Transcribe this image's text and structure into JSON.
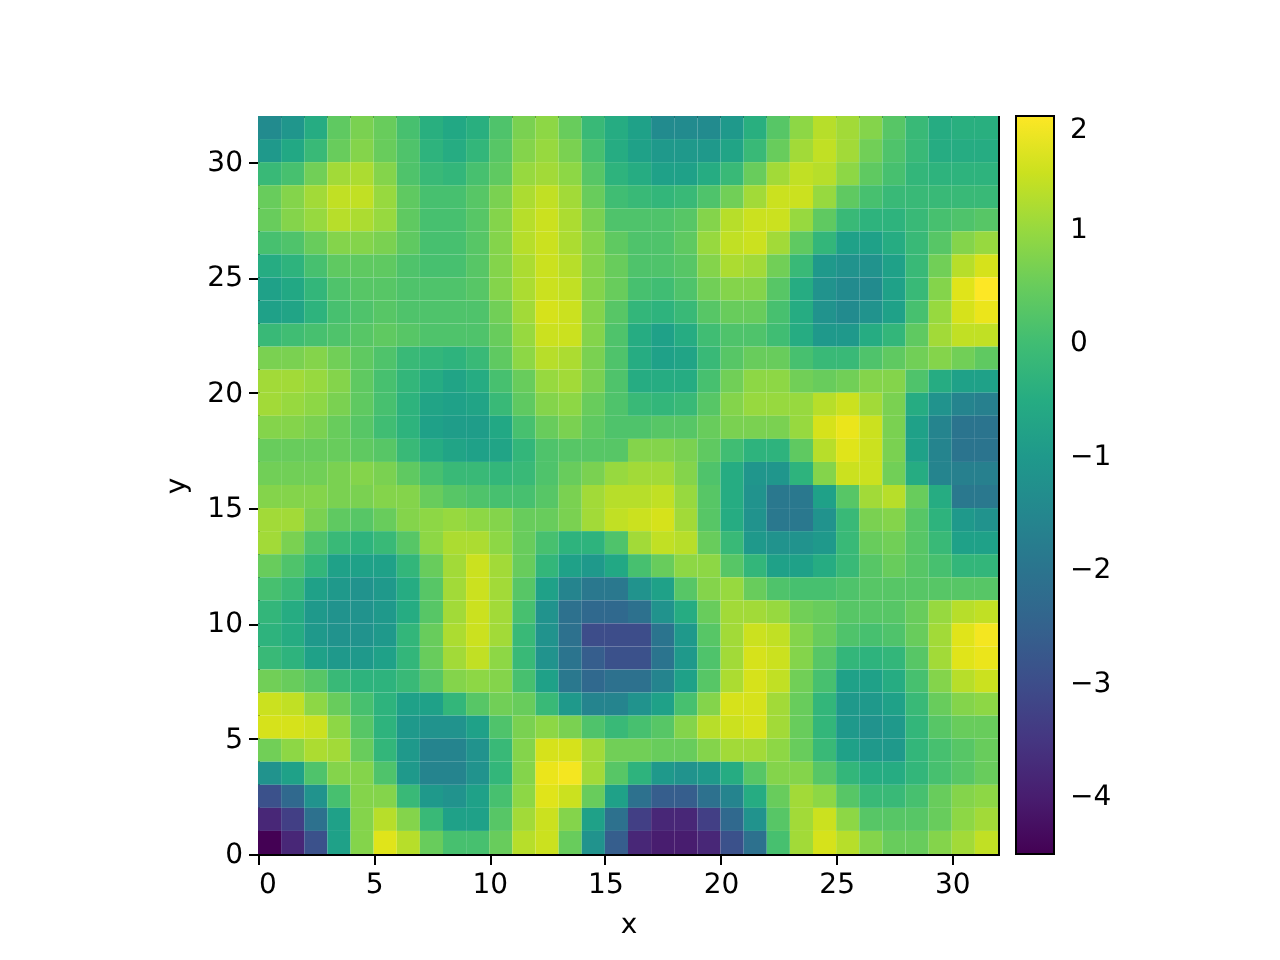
{
  "chart_data": {
    "type": "heatmap",
    "xlabel": "x",
    "ylabel": "y",
    "xlim": [
      0,
      32
    ],
    "ylim": [
      0,
      32
    ],
    "xticks": [
      0,
      5,
      10,
      15,
      20,
      25,
      30
    ],
    "yticks": [
      0,
      5,
      10,
      15,
      20,
      25,
      30
    ],
    "clim": [
      -4.5,
      2
    ],
    "cticks": [
      {
        "value": -4,
        "label": "−4"
      },
      {
        "value": -3,
        "label": "−3"
      },
      {
        "value": -2,
        "label": "−2"
      },
      {
        "value": -1,
        "label": "−1"
      },
      0,
      1,
      2
    ],
    "cells": [
      [
        -1.4,
        -1.1,
        -0.5,
        0.4,
        0.7,
        0.5,
        0.1,
        -0.4,
        -0.6,
        -0.4,
        0.2,
        0.7,
        0.9,
        0.5,
        -0.1,
        -0.5,
        -0.8,
        -1.4,
        -1.4,
        -1.4,
        -1.0,
        -0.4,
        0.3,
        0.9,
        1.3,
        1.1,
        0.8,
        0.3,
        -0.1,
        -0.5,
        -0.4,
        -0.4
      ],
      [
        -1.0,
        -0.6,
        -0.1,
        0.5,
        0.8,
        0.5,
        0.2,
        -0.3,
        -0.5,
        -0.2,
        0.3,
        0.8,
        1.0,
        0.7,
        0.1,
        -0.5,
        -0.8,
        -1.0,
        -1.0,
        -1.0,
        -0.7,
        -0.1,
        0.5,
        1.1,
        1.4,
        1.1,
        0.6,
        0.2,
        -0.1,
        -0.5,
        -0.5,
        -0.5
      ],
      [
        -0.1,
        0.1,
        0.6,
        1.1,
        1.2,
        0.8,
        0.2,
        -0.1,
        -0.2,
        0.1,
        0.4,
        1.0,
        1.1,
        0.9,
        0.3,
        -0.3,
        -0.5,
        -0.8,
        -0.8,
        -0.5,
        -0.1,
        0.5,
        1.1,
        1.4,
        1.3,
        0.9,
        0.4,
        0.1,
        -0.2,
        -0.3,
        -0.3,
        -0.3
      ],
      [
        0.5,
        0.8,
        1.1,
        1.4,
        1.4,
        1.0,
        0.4,
        0.1,
        0.1,
        0.3,
        0.7,
        1.2,
        1.4,
        1.1,
        0.5,
        0.0,
        -0.1,
        -0.2,
        -0.1,
        0.2,
        0.6,
        1.1,
        1.5,
        1.5,
        1.0,
        0.4,
        0.1,
        -0.1,
        -0.1,
        -0.1,
        -0.1,
        -0.1
      ],
      [
        0.5,
        0.8,
        1.0,
        1.3,
        1.2,
        1.0,
        0.4,
        0.1,
        0.1,
        0.3,
        0.8,
        1.3,
        1.5,
        1.2,
        0.7,
        0.2,
        0.2,
        0.2,
        0.3,
        0.8,
        1.3,
        1.5,
        1.5,
        1.0,
        0.4,
        -0.1,
        -0.3,
        -0.3,
        -0.1,
        0.1,
        0.2,
        0.3
      ],
      [
        0.1,
        0.2,
        0.5,
        0.8,
        0.8,
        0.7,
        0.4,
        0.1,
        0.1,
        0.3,
        0.8,
        1.3,
        1.5,
        1.2,
        0.8,
        0.4,
        0.2,
        0.2,
        0.4,
        1.0,
        1.4,
        1.5,
        1.1,
        0.4,
        -0.2,
        -0.8,
        -0.8,
        -0.5,
        -0.1,
        0.3,
        0.8,
        1.0
      ],
      [
        -0.5,
        -0.3,
        0.1,
        0.4,
        0.4,
        0.4,
        0.2,
        0.1,
        0.1,
        0.3,
        0.8,
        1.2,
        1.5,
        1.3,
        0.8,
        0.5,
        0.2,
        0.2,
        0.3,
        0.8,
        1.2,
        1.1,
        0.6,
        -0.1,
        -1.0,
        -1.2,
        -1.2,
        -0.8,
        -0.1,
        0.6,
        1.3,
        1.6
      ],
      [
        -0.8,
        -0.6,
        -0.2,
        0.2,
        0.3,
        0.3,
        0.2,
        0.2,
        0.2,
        0.3,
        0.8,
        1.2,
        1.5,
        1.4,
        0.8,
        0.5,
        0.1,
        0.0,
        0.2,
        0.6,
        0.8,
        0.8,
        0.3,
        -0.5,
        -1.2,
        -1.4,
        -1.4,
        -0.8,
        -0.1,
        0.8,
        1.7,
        2.0
      ],
      [
        -0.8,
        -0.7,
        -0.3,
        0.1,
        0.2,
        0.3,
        0.2,
        0.2,
        0.2,
        0.2,
        0.6,
        1.1,
        1.6,
        1.5,
        0.8,
        0.3,
        -0.2,
        -0.3,
        -0.1,
        0.3,
        0.5,
        0.5,
        0.1,
        -0.5,
        -1.2,
        -1.4,
        -1.2,
        -0.8,
        0.1,
        1.0,
        1.6,
        1.8
      ],
      [
        -0.1,
        0.0,
        0.1,
        0.2,
        0.3,
        0.4,
        0.3,
        0.2,
        0.2,
        0.2,
        0.5,
        1.0,
        1.5,
        1.5,
        0.8,
        0.2,
        -0.5,
        -0.8,
        -0.5,
        0.0,
        0.2,
        0.2,
        0.0,
        -0.5,
        -1.0,
        -1.0,
        -0.5,
        -0.2,
        0.4,
        1.1,
        1.4,
        1.4
      ],
      [
        0.7,
        0.7,
        0.8,
        0.6,
        0.4,
        0.2,
        -0.1,
        -0.2,
        -0.3,
        -0.1,
        0.4,
        0.9,
        1.3,
        1.2,
        0.7,
        0.2,
        -0.5,
        -0.8,
        -0.7,
        -0.1,
        0.3,
        0.5,
        0.5,
        0.1,
        -0.1,
        -0.1,
        0.2,
        0.4,
        0.6,
        0.8,
        0.6,
        0.4
      ],
      [
        1.1,
        1.1,
        1.0,
        0.8,
        0.4,
        0.1,
        -0.2,
        -0.5,
        -0.7,
        -0.5,
        0.1,
        0.5,
        1.0,
        1.1,
        0.7,
        0.2,
        -0.5,
        -0.5,
        -0.5,
        0.1,
        0.6,
        0.9,
        0.9,
        0.6,
        0.5,
        0.6,
        0.8,
        0.8,
        0.2,
        -0.5,
        -0.8,
        -0.8
      ],
      [
        1.1,
        1.0,
        0.9,
        0.7,
        0.4,
        0.1,
        -0.3,
        -0.7,
        -0.8,
        -0.7,
        -0.1,
        0.4,
        0.8,
        0.9,
        0.5,
        0.2,
        -0.1,
        -0.2,
        -0.1,
        0.3,
        0.8,
        1.0,
        1.0,
        1.0,
        1.3,
        1.5,
        1.1,
        0.7,
        -0.5,
        -1.2,
        -1.6,
        -1.7
      ],
      [
        0.8,
        0.8,
        0.7,
        0.5,
        0.3,
        0.0,
        -0.3,
        -0.8,
        -0.9,
        -0.9,
        -0.6,
        0.1,
        0.5,
        0.7,
        0.4,
        0.2,
        0.2,
        0.3,
        0.3,
        0.5,
        0.7,
        0.7,
        0.7,
        1.0,
        1.6,
        1.8,
        1.5,
        0.7,
        -0.8,
        -1.6,
        -2.0,
        -2.0
      ],
      [
        0.5,
        0.5,
        0.5,
        0.5,
        0.4,
        0.3,
        -0.1,
        -0.5,
        -0.7,
        -0.8,
        -0.7,
        -0.2,
        0.2,
        0.3,
        0.3,
        0.3,
        0.8,
        0.8,
        0.7,
        0.4,
        0.0,
        -0.3,
        -0.3,
        0.4,
        1.3,
        1.7,
        1.5,
        0.7,
        -0.8,
        -1.6,
        -2.0,
        -2.0
      ],
      [
        0.6,
        0.6,
        0.6,
        0.7,
        0.8,
        0.7,
        0.4,
        0.1,
        -0.1,
        -0.1,
        -0.2,
        -0.1,
        0.2,
        0.5,
        0.7,
        1.0,
        1.1,
        1.1,
        0.8,
        0.2,
        -0.5,
        -1.1,
        -1.1,
        -0.3,
        0.8,
        1.5,
        1.5,
        0.6,
        -0.5,
        -1.6,
        -1.7,
        -1.7
      ],
      [
        0.8,
        0.8,
        0.8,
        0.7,
        0.7,
        0.8,
        0.8,
        0.5,
        0.3,
        0.2,
        0.1,
        0.1,
        0.3,
        0.7,
        1.1,
        1.3,
        1.3,
        1.4,
        1.0,
        0.3,
        -0.5,
        -1.2,
        -1.9,
        -1.9,
        -0.8,
        0.3,
        1.1,
        1.3,
        0.5,
        -0.5,
        -1.9,
        -1.9
      ],
      [
        1.1,
        1.1,
        0.7,
        0.4,
        0.3,
        0.5,
        0.8,
        0.9,
        1.0,
        0.9,
        0.8,
        0.5,
        0.5,
        0.7,
        1.1,
        1.4,
        1.5,
        1.6,
        1.1,
        0.3,
        -0.5,
        -1.2,
        -1.9,
        -1.9,
        -1.2,
        -0.1,
        0.7,
        0.8,
        0.3,
        -0.3,
        -1.0,
        -1.2
      ],
      [
        1.1,
        0.7,
        0.2,
        -0.1,
        -0.3,
        -0.1,
        0.3,
        0.9,
        1.2,
        1.2,
        0.9,
        0.5,
        0.1,
        -0.3,
        -0.3,
        0.2,
        1.1,
        1.4,
        1.3,
        0.5,
        -0.1,
        -1.0,
        -1.2,
        -1.2,
        -1.0,
        -0.1,
        0.5,
        0.6,
        0.3,
        -0.1,
        -0.8,
        -0.8
      ],
      [
        0.5,
        0.2,
        -0.2,
        -0.8,
        -0.8,
        -0.8,
        -0.2,
        0.5,
        1.1,
        1.5,
        1.1,
        0.5,
        -0.2,
        -0.8,
        -1.0,
        -0.6,
        0.1,
        0.5,
        0.9,
        0.9,
        0.3,
        -0.2,
        -0.8,
        -0.8,
        -0.5,
        -0.1,
        0.3,
        0.5,
        0.3,
        0.1,
        -0.2,
        -0.2
      ],
      [
        0.1,
        -0.1,
        -0.8,
        -1.0,
        -1.2,
        -1.0,
        -0.5,
        0.3,
        1.1,
        1.5,
        1.1,
        0.3,
        -0.8,
        -1.6,
        -1.9,
        -1.9,
        -1.2,
        -0.8,
        0.3,
        0.8,
        1.0,
        0.5,
        0.2,
        0.1,
        0.1,
        0.2,
        0.3,
        0.3,
        0.3,
        0.3,
        0.3,
        0.3
      ],
      [
        -0.2,
        -0.5,
        -1.0,
        -1.2,
        -1.2,
        -1.0,
        -0.5,
        0.3,
        1.1,
        1.5,
        1.1,
        0.1,
        -1.2,
        -2.1,
        -2.3,
        -2.3,
        -2.1,
        -1.2,
        -0.5,
        0.5,
        1.1,
        1.1,
        1.0,
        0.6,
        0.5,
        0.3,
        0.3,
        0.3,
        0.5,
        1.0,
        1.3,
        1.4
      ],
      [
        -0.3,
        -0.5,
        -1.0,
        -1.2,
        -1.2,
        -1.0,
        -0.2,
        0.5,
        1.2,
        1.5,
        1.1,
        -0.1,
        -1.2,
        -2.1,
        -3.0,
        -3.0,
        -3.0,
        -2.0,
        -1.0,
        0.3,
        1.1,
        1.5,
        1.4,
        0.8,
        0.5,
        0.2,
        0.1,
        0.2,
        0.5,
        1.1,
        1.7,
        1.9
      ],
      [
        -0.1,
        -0.3,
        -0.8,
        -1.0,
        -1.0,
        -0.8,
        -0.2,
        0.5,
        1.1,
        1.4,
        0.9,
        -0.1,
        -1.2,
        -2.0,
        -2.6,
        -2.9,
        -2.9,
        -2.0,
        -1.0,
        0.2,
        1.1,
        1.6,
        1.5,
        0.8,
        0.3,
        -0.2,
        -0.3,
        -0.2,
        0.3,
        1.1,
        1.7,
        1.8
      ],
      [
        0.6,
        0.5,
        0.3,
        -0.1,
        -0.3,
        -0.3,
        -0.1,
        0.3,
        0.8,
        0.9,
        0.8,
        0.1,
        -0.8,
        -1.9,
        -2.3,
        -2.1,
        -2.1,
        -1.6,
        -0.8,
        0.3,
        1.2,
        1.6,
        1.4,
        0.6,
        0.1,
        -0.8,
        -0.8,
        -0.5,
        0.1,
        0.8,
        1.3,
        1.5
      ],
      [
        1.5,
        1.4,
        0.9,
        0.5,
        0.1,
        -0.3,
        -0.8,
        -0.8,
        -0.2,
        0.3,
        0.6,
        0.5,
        -0.1,
        -1.0,
        -1.6,
        -1.6,
        -1.2,
        -0.8,
        0.1,
        0.8,
        1.6,
        1.6,
        1.1,
        0.5,
        -0.2,
        -1.0,
        -1.0,
        -0.8,
        -0.1,
        0.5,
        0.8,
        0.9
      ],
      [
        1.6,
        1.6,
        1.5,
        0.9,
        0.3,
        -0.3,
        -1.0,
        -1.2,
        -1.2,
        -0.8,
        0.2,
        0.7,
        0.9,
        0.7,
        0.2,
        -0.1,
        0.1,
        0.3,
        0.8,
        1.3,
        1.5,
        1.6,
        1.1,
        0.5,
        -0.2,
        -1.0,
        -1.2,
        -1.0,
        -0.2,
        0.3,
        0.5,
        0.5
      ],
      [
        0.6,
        0.9,
        1.2,
        1.1,
        0.5,
        -0.2,
        -1.0,
        -1.6,
        -1.6,
        -1.2,
        -0.1,
        0.8,
        1.6,
        1.6,
        1.1,
        0.6,
        0.6,
        0.5,
        0.5,
        0.8,
        1.1,
        1.1,
        0.9,
        0.5,
        -0.1,
        -0.8,
        -1.0,
        -1.0,
        -0.2,
        0.1,
        0.3,
        0.5
      ],
      [
        -1.2,
        -0.8,
        0.2,
        0.8,
        0.8,
        0.2,
        -1.0,
        -1.6,
        -1.6,
        -1.2,
        -0.2,
        0.8,
        1.8,
        1.9,
        1.1,
        0.3,
        -0.3,
        -1.0,
        -1.2,
        -1.0,
        -0.5,
        0.3,
        0.8,
        0.8,
        0.3,
        -0.2,
        -0.5,
        -0.5,
        -0.2,
        0.1,
        0.3,
        0.5
      ],
      [
        -2.9,
        -2.3,
        -1.2,
        0.1,
        0.8,
        0.8,
        -0.1,
        -1.0,
        -1.2,
        -0.8,
        0.1,
        0.9,
        1.7,
        1.5,
        0.5,
        -0.8,
        -2.1,
        -2.6,
        -2.6,
        -2.1,
        -1.6,
        -0.5,
        0.5,
        1.1,
        0.9,
        0.3,
        -0.1,
        -0.1,
        0.1,
        0.5,
        0.8,
        0.9
      ],
      [
        -3.8,
        -3.3,
        -2.1,
        -0.8,
        0.8,
        1.3,
        0.8,
        -0.1,
        -0.8,
        -0.8,
        0.3,
        1.1,
        1.5,
        0.8,
        -0.8,
        -2.1,
        -3.3,
        -3.8,
        -3.8,
        -3.3,
        -2.3,
        -1.2,
        0.3,
        1.1,
        1.5,
        0.9,
        0.3,
        0.3,
        0.3,
        0.5,
        0.9,
        1.1
      ],
      [
        -4.5,
        -3.8,
        -2.9,
        -0.8,
        0.8,
        1.7,
        1.3,
        0.5,
        0.1,
        0.1,
        0.5,
        1.3,
        1.5,
        0.5,
        -1.2,
        -2.6,
        -3.8,
        -4.0,
        -4.0,
        -3.8,
        -2.9,
        -2.1,
        0.1,
        1.1,
        1.6,
        1.3,
        0.8,
        0.5,
        0.5,
        0.8,
        1.1,
        1.4
      ]
    ]
  }
}
